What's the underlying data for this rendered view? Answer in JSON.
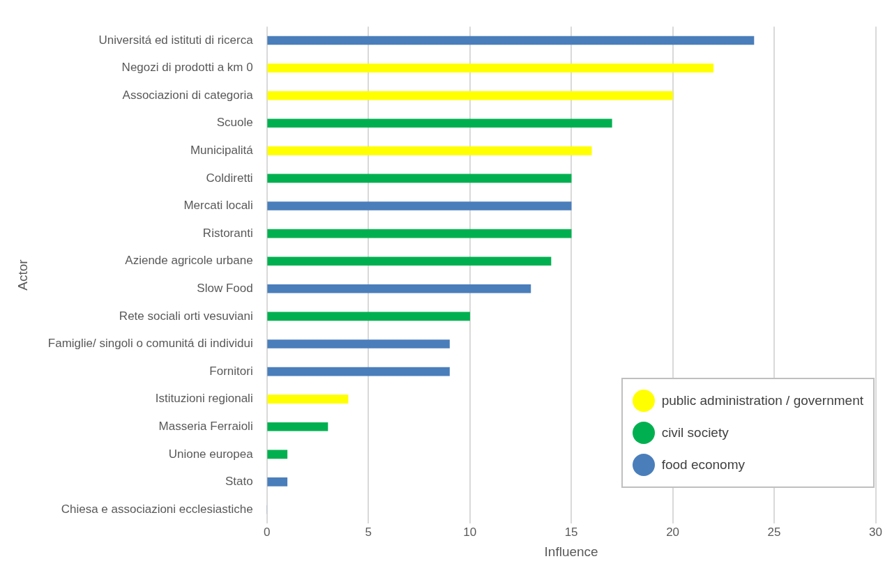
{
  "chart_data": {
    "type": "bar",
    "orientation": "horizontal",
    "stacked": true,
    "xlabel": "Influence",
    "ylabel": "Actor",
    "categories": [
      "Universitá ed istituti di ricerca",
      "Negozi di prodotti a km 0",
      "Associazioni di categoria",
      "Scuole",
      "Municipalitá",
      "Coldiretti",
      "Mercati locali",
      "Ristoranti",
      "Aziende agricole urbane",
      "Slow Food",
      "Rete sociali orti vesuviani",
      "Famiglie/ singoli o comunitá di individui",
      "Fornitori",
      "Istituzioni regionali",
      "Masseria Ferraioli",
      "Unione europea",
      "Stato",
      "Chiesa e associazioni ecclesiastiche"
    ],
    "series": [
      {
        "name": "public administration / government",
        "color": "#ffff00",
        "values": [
          null,
          22,
          20,
          null,
          16,
          null,
          null,
          null,
          null,
          null,
          null,
          null,
          null,
          4,
          null,
          null,
          null,
          null
        ]
      },
      {
        "name": "civil society",
        "color": "#00b050",
        "values": [
          null,
          null,
          null,
          17,
          null,
          15,
          null,
          15,
          14,
          null,
          10,
          null,
          null,
          null,
          3,
          1,
          null,
          null
        ]
      },
      {
        "name": "food economy",
        "color": "#4a7ebb",
        "values": [
          24,
          null,
          null,
          null,
          null,
          null,
          15,
          null,
          null,
          13,
          null,
          9,
          9,
          null,
          null,
          null,
          1,
          0
        ]
      }
    ],
    "xlim": [
      0,
      30
    ],
    "xticks": [
      0,
      5,
      10,
      15,
      20,
      25,
      30
    ],
    "grid": "x",
    "legend": "bottom right"
  }
}
